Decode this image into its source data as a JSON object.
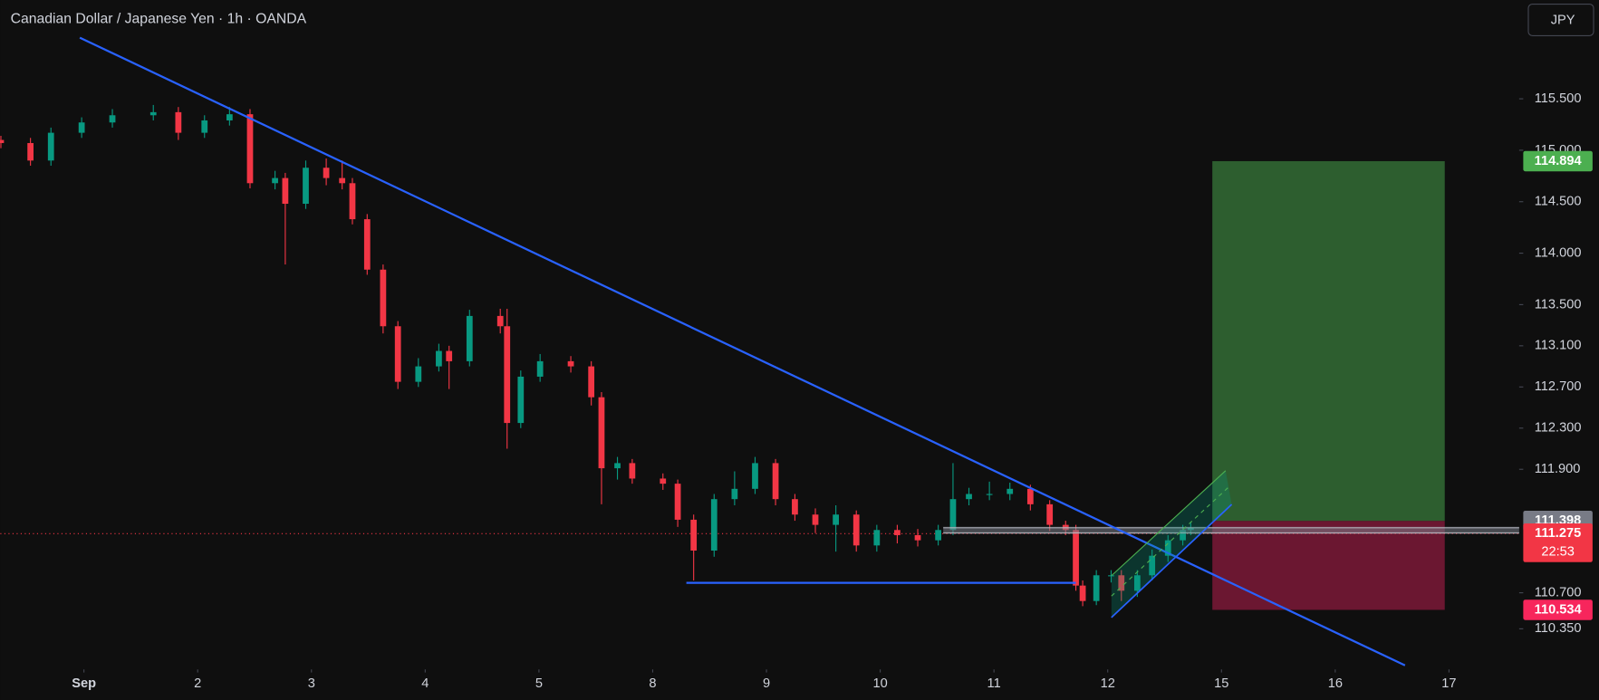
{
  "chart_data": {
    "type": "candlestick",
    "title": "Canadian Dollar / Japanese Yen · 1h · OANDA",
    "currency": "JPY",
    "up_color": "#089981",
    "down_color": "#f23645",
    "xlim": [
      -0.735,
      12.617
    ],
    "xticks": [
      {
        "value": 0,
        "label": "Sep"
      },
      {
        "value": 1,
        "label": "2"
      },
      {
        "value": 2,
        "label": "3"
      },
      {
        "value": 3,
        "label": "4"
      },
      {
        "value": 4,
        "label": "5"
      },
      {
        "value": 5,
        "label": "8"
      },
      {
        "value": 6,
        "label": "9"
      },
      {
        "value": 7,
        "label": "10"
      },
      {
        "value": 8,
        "label": "11"
      },
      {
        "value": 9,
        "label": "12"
      },
      {
        "value": 10,
        "label": "15"
      },
      {
        "value": 11,
        "label": "16"
      },
      {
        "value": 12,
        "label": "17"
      }
    ],
    "ylim": [
      116.46,
      109.975
    ],
    "yticks": [
      {
        "value": 115.5,
        "label": "115.500"
      },
      {
        "value": 115,
        "label": "115.000"
      },
      {
        "value": 114.5,
        "label": "114.500"
      },
      {
        "value": 114,
        "label": "114.000"
      },
      {
        "value": 113.5,
        "label": "113.500"
      },
      {
        "value": 113.1,
        "label": "113.100"
      },
      {
        "value": 112.7,
        "label": "112.700"
      },
      {
        "value": 112.3,
        "label": "112.300"
      },
      {
        "value": 111.9,
        "label": "111.900"
      },
      {
        "value": 110.7,
        "label": "110.700"
      },
      {
        "value": 110.35,
        "label": "110.350"
      }
    ],
    "candles": {
      "x": [
        -0.73,
        -0.47,
        -0.29,
        -0.02,
        0.25,
        0.61,
        0.83,
        1.06,
        1.28,
        1.46,
        1.68,
        1.77,
        1.95,
        2.13,
        2.27,
        2.36,
        2.49,
        2.63,
        2.76,
        2.94,
        3.12,
        3.21,
        3.39,
        3.66,
        3.72,
        3.84,
        4.01,
        4.28,
        4.46,
        4.55,
        4.69,
        4.82,
        5.09,
        5.22,
        5.36,
        5.54,
        5.72,
        5.9,
        6.08,
        6.25,
        6.43,
        6.61,
        6.79,
        6.97,
        7.15,
        7.33,
        7.51,
        7.64,
        7.78,
        7.96,
        8.14,
        8.32,
        8.49,
        8.63,
        8.72,
        8.78,
        8.9,
        9.03,
        9.12,
        9.26,
        9.39,
        9.53,
        9.66,
        9.73
      ],
      "open": [
        115.1,
        115.07,
        114.9,
        115.17,
        115.27,
        115.34,
        115.37,
        115.17,
        115.29,
        115.35,
        114.68,
        114.73,
        114.48,
        114.83,
        114.73,
        114.68,
        114.33,
        113.84,
        113.29,
        112.75,
        112.9,
        113.05,
        112.95,
        113.39,
        113.29,
        112.35,
        112.8,
        112.95,
        112.9,
        112.6,
        111.91,
        111.96,
        111.81,
        111.76,
        111.41,
        111.11,
        111.61,
        111.71,
        111.96,
        111.61,
        111.46,
        111.36,
        111.46,
        111.16,
        111.31,
        111.26,
        111.21,
        111.31,
        111.61,
        111.66,
        111.66,
        111.71,
        111.56,
        111.36,
        111.31,
        110.77,
        110.62,
        110.87,
        110.87,
        110.72,
        110.87,
        111.06,
        111.21,
        111.31
      ],
      "high": [
        115.14,
        115.12,
        115.22,
        115.32,
        115.4,
        115.44,
        115.42,
        115.34,
        115.42,
        115.4,
        114.8,
        114.78,
        114.9,
        114.92,
        114.9,
        114.73,
        114.38,
        113.89,
        113.34,
        112.98,
        113.12,
        113.1,
        113.45,
        113.46,
        113.46,
        112.86,
        113.02,
        113,
        112.95,
        112.65,
        112.02,
        112,
        111.86,
        111.8,
        111.46,
        111.66,
        111.88,
        112.02,
        112,
        111.66,
        111.52,
        111.55,
        111.5,
        111.36,
        111.36,
        111.32,
        111.36,
        111.96,
        111.72,
        111.78,
        111.77,
        111.75,
        111.6,
        111.4,
        111.36,
        110.82,
        110.92,
        110.92,
        110.92,
        110.92,
        111.12,
        111.26,
        111.36,
        111.38
      ],
      "low": [
        115.02,
        114.85,
        114.85,
        115.12,
        115.22,
        115.29,
        115.1,
        115.12,
        115.24,
        114.63,
        114.62,
        113.89,
        114.43,
        114.66,
        114.62,
        114.28,
        113.79,
        113.22,
        112.68,
        112.7,
        112.85,
        112.68,
        112.9,
        113.22,
        112.1,
        112.3,
        112.75,
        112.84,
        112.52,
        111.56,
        111.8,
        111.76,
        111.7,
        111.34,
        110.82,
        111.05,
        111.55,
        111.66,
        111.55,
        111.4,
        111.28,
        111.1,
        111.1,
        111.1,
        111.18,
        111.15,
        111.16,
        111.26,
        111.55,
        111.6,
        111.6,
        111.5,
        111.3,
        111.26,
        110.72,
        110.57,
        110.58,
        110.8,
        110.62,
        110.66,
        110.82,
        111,
        111.16,
        111.26
      ],
      "close": [
        115.07,
        114.9,
        115.17,
        115.27,
        115.34,
        115.37,
        115.17,
        115.29,
        115.35,
        114.68,
        114.73,
        114.48,
        114.83,
        114.73,
        114.68,
        114.33,
        113.84,
        113.29,
        112.75,
        112.9,
        113.05,
        112.95,
        113.39,
        113.29,
        112.35,
        112.8,
        112.95,
        112.9,
        112.6,
        111.91,
        111.96,
        111.81,
        111.76,
        111.41,
        111.11,
        111.61,
        111.71,
        111.96,
        111.61,
        111.46,
        111.36,
        111.46,
        111.16,
        111.31,
        111.26,
        111.21,
        111.31,
        111.61,
        111.66,
        111.66,
        111.71,
        111.56,
        111.36,
        111.31,
        110.77,
        110.62,
        110.87,
        110.87,
        110.72,
        110.87,
        111.06,
        111.21,
        111.31,
        111.33
      ]
    },
    "price_labels": [
      {
        "value": 114.894,
        "color": "#4caf50"
      },
      {
        "value": 111.398,
        "color": "#787b86"
      },
      {
        "value": 111.275,
        "color": "#f23645"
      },
      {
        "value": 110.534,
        "color": "#f7265c"
      }
    ],
    "countdown": "22:53",
    "current_price_index": 2
  }
}
